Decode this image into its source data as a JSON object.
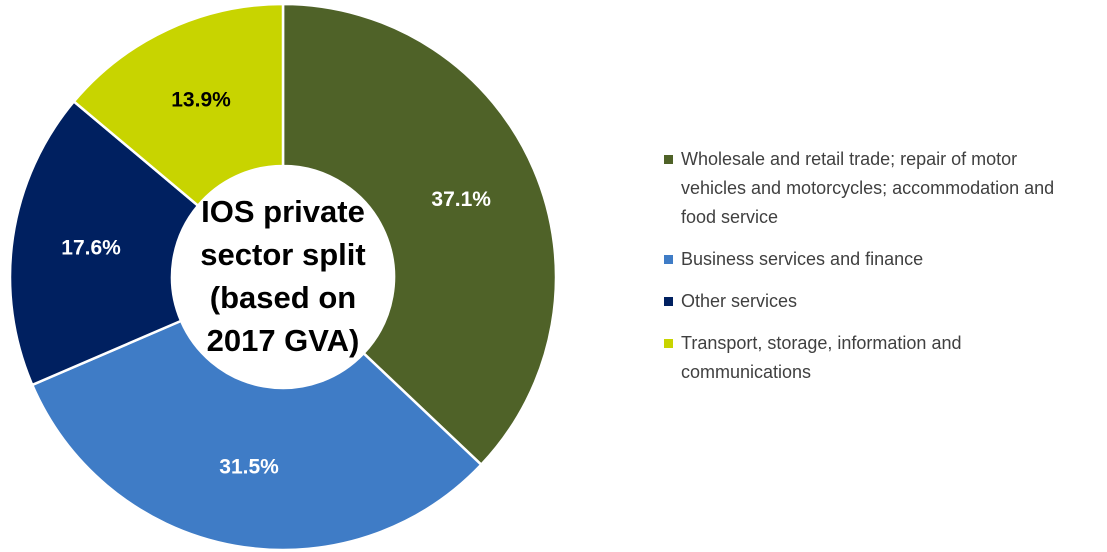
{
  "chart_data": {
    "type": "donut",
    "title": "IOS private sector split (based on 2017 GVA)",
    "series": [
      {
        "name": "Wholesale and retail trade; repair of motor vehicles and motorcycles; accommodation and food service",
        "color": "#4f6228"
      },
      {
        "name": "Business services and finance",
        "color": "#3f7cc6"
      },
      {
        "name": "Other services",
        "color": "#002060"
      },
      {
        "name": "Transport, storage, information and communications",
        "color": "#c8d400"
      }
    ],
    "values": [
      37.1,
      31.5,
      17.6,
      13.9
    ],
    "value_labels": [
      "37.1%",
      "31.5%",
      "17.6%",
      "13.9%"
    ],
    "legend": "right"
  }
}
